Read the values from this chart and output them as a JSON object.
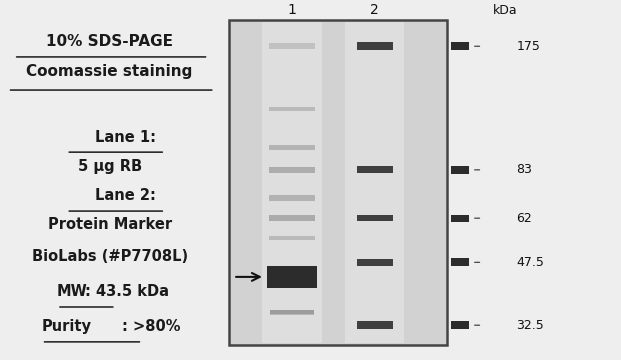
{
  "title_line1": "10% SDS-PAGE",
  "title_line2": "Coomassie staining",
  "lane1_label": "Lane 1",
  "lane1_desc": "5 μg RB",
  "lane2_label": "Lane 2",
  "lane2_desc1": "Protein Marker",
  "lane2_desc2": "BioLabs (#P7708L)",
  "mw_label": "MW",
  "mw_value": ": 43.5 kDa",
  "purity_label": "Purity",
  "purity_value": ": >80%",
  "kda_label": "kDa",
  "marker_bands": [
    175,
    83,
    62,
    47.5,
    32.5
  ],
  "bg_color": "#eeeeee",
  "gel_bg": "#c8c8c8",
  "band_color_dark": "#1a1a1a",
  "text_color": "#1a1a1a",
  "figsize": [
    6.21,
    3.6
  ],
  "dpi": 100
}
